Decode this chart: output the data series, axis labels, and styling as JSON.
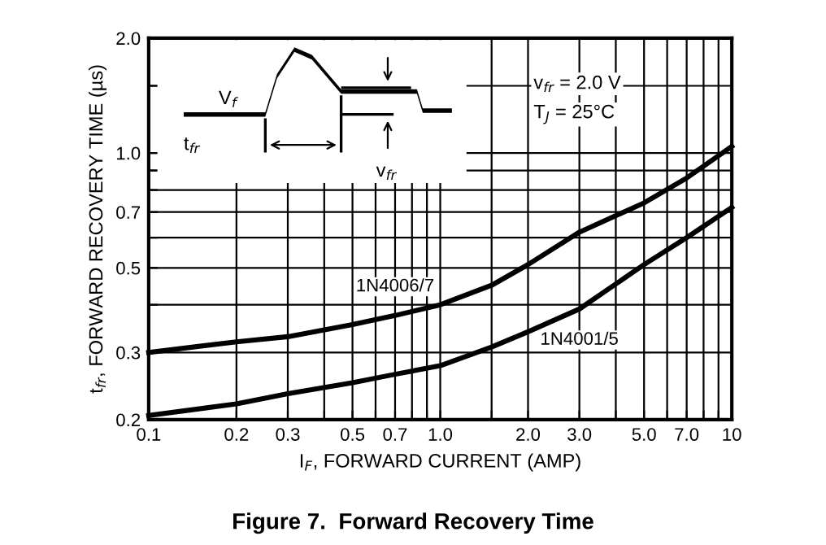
{
  "chart_data": {
    "type": "line",
    "title": "Figure 7.  Forward Recovery Time",
    "xlabel": "I$_{F}$, FORWARD CURRENT (AMP)",
    "ylabel": "t$_{fr}$, FORWARD RECOVERY TIME (µs)",
    "annotations": [
      "V$_{f}$",
      "t$_{fr}$",
      "v$_{fr}$",
      "v$_{fr}$ = 2.0 V",
      "T$_{J}$ = 25°C"
    ],
    "series": [
      {
        "name": "1N4006/7",
        "color": "#000000",
        "x": [
          0.1,
          0.2,
          0.3,
          0.5,
          0.7,
          1.0,
          1.5,
          2.0,
          3.0,
          5.0,
          7.0,
          10.0
        ],
        "values": [
          0.3,
          0.32,
          0.33,
          0.355,
          0.375,
          0.4,
          0.45,
          0.51,
          0.62,
          0.74,
          0.86,
          1.04
        ]
      },
      {
        "name": "1N4001/5",
        "color": "#000000",
        "x": [
          0.1,
          0.2,
          0.3,
          0.5,
          0.7,
          1.0,
          1.5,
          2.0,
          3.0,
          5.0,
          7.0,
          10.0
        ],
        "values": [
          0.205,
          0.22,
          0.234,
          0.25,
          0.263,
          0.277,
          0.31,
          0.34,
          0.39,
          0.51,
          0.6,
          0.72
        ]
      }
    ],
    "log": "xy",
    "xlim": [
      0.1,
      10
    ],
    "ylim": [
      0.2,
      2.0
    ],
    "xticks": [
      0.1,
      0.2,
      0.3,
      {
        "value": 0.4,
        "label": null
      },
      0.5,
      {
        "value": 0.6,
        "label": null
      },
      0.7,
      {
        "value": 0.8,
        "label": null
      },
      {
        "value": 0.9,
        "label": null
      },
      {
        "value": 1.0,
        "label": "1.0"
      },
      {
        "value": 1.5,
        "label": null
      },
      {
        "value": 2.0,
        "label": "2.0"
      },
      {
        "value": 3.0,
        "label": "3.0"
      },
      {
        "value": 4.0,
        "label": null
      },
      {
        "value": 5.0,
        "label": "5.0"
      },
      {
        "value": 6.0,
        "label": null
      },
      {
        "value": 7.0,
        "label": "7.0"
      },
      {
        "value": 8.0,
        "label": null
      },
      {
        "value": 9.0,
        "label": null
      },
      10
    ],
    "yticks": [
      0.2,
      0.3,
      {
        "value": 0.4,
        "label": null
      },
      0.5,
      {
        "value": 0.6,
        "label": null
      },
      0.7,
      {
        "value": 0.8,
        "label": null
      },
      {
        "value": 0.9,
        "label": null
      },
      {
        "value": 1.0,
        "label": "1.0"
      },
      {
        "value": 1.5,
        "label": null
      },
      {
        "value": 2.0,
        "label": "2.0"
      }
    ],
    "grid": true,
    "marker": "none",
    "line_style": "solid"
  }
}
